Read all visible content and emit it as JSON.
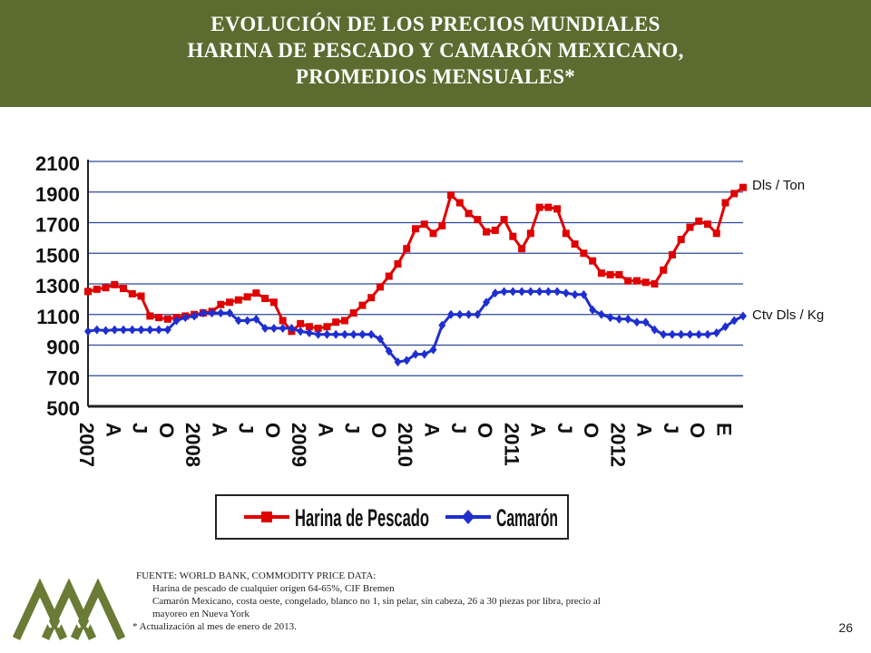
{
  "header": {
    "title_lines": [
      "EVOLUCIÓN DE LOS PRECIOS MUNDIALES",
      "HARINA DE PESCADO Y CAMARÓN MEXICANO,",
      "PROMEDIOS MENSUALES*"
    ]
  },
  "chart_data": {
    "type": "line",
    "title": "",
    "y_ticks": [
      "2100",
      "1900",
      "1700",
      "1500",
      "1300",
      "1100",
      "900",
      "700",
      "500"
    ],
    "ylim": [
      500,
      2100
    ],
    "grid": true,
    "x_tick_labels": [
      "2007",
      "A",
      "J",
      "O",
      "2008",
      "A",
      "J",
      "O",
      "2009",
      "A",
      "J",
      "O",
      "2010",
      "A",
      "J",
      "O",
      "2011",
      "A",
      "J",
      "O",
      "2012",
      "A",
      "J",
      "O",
      "E"
    ],
    "unit_labels": {
      "harina": "Dls / Ton",
      "camaron": "Ctv Dls / Kg"
    },
    "series": [
      {
        "name": "Harina de Pescado",
        "color": "#e00000",
        "marker": "square",
        "values": [
          1250,
          1265,
          1275,
          1295,
          1270,
          1235,
          1220,
          1090,
          1080,
          1070,
          1080,
          1090,
          1100,
          1110,
          1120,
          1165,
          1180,
          1195,
          1215,
          1240,
          1205,
          1180,
          1060,
          990,
          1040,
          1020,
          1010,
          1020,
          1050,
          1060,
          1110,
          1160,
          1210,
          1280,
          1350,
          1430,
          1530,
          1660,
          1690,
          1630,
          1680,
          1880,
          1830,
          1760,
          1720,
          1640,
          1650,
          1720,
          1610,
          1530,
          1630,
          1800,
          1800,
          1790,
          1630,
          1560,
          1500,
          1450,
          1370,
          1360,
          1360,
          1320,
          1320,
          1310,
          1300,
          1390,
          1490,
          1590,
          1670,
          1710,
          1690,
          1630,
          1830,
          1890,
          1930
        ]
      },
      {
        "name": "Camarón",
        "color": "#1f2fcf",
        "marker": "diamond",
        "values": [
          990,
          1000,
          995,
          1000,
          1000,
          1000,
          1000,
          1000,
          1000,
          1000,
          1060,
          1080,
          1090,
          1110,
          1110,
          1110,
          1110,
          1060,
          1060,
          1070,
          1010,
          1010,
          1010,
          1010,
          990,
          980,
          970,
          970,
          970,
          970,
          970,
          970,
          970,
          940,
          860,
          790,
          800,
          840,
          840,
          870,
          1030,
          1100,
          1100,
          1100,
          1100,
          1180,
          1240,
          1250,
          1250,
          1250,
          1250,
          1250,
          1250,
          1250,
          1240,
          1230,
          1230,
          1130,
          1100,
          1080,
          1070,
          1070,
          1050,
          1050,
          1000,
          970,
          970,
          970,
          970,
          970,
          970,
          980,
          1020,
          1060,
          1090
        ]
      }
    ]
  },
  "source": {
    "line1": "FUENTE: WORLD BANK, COMMODITY PRICE DATA:",
    "line2": "Harina de pescado  de cualquier origen 64-65%, CIF Bremen",
    "line3": "Camarón Mexicano, costa oeste, congelado,  blanco no 1, sin pelar, sin cabeza,  26 a 30 piezas por libra, precio al",
    "line4": "mayoreo  en  Nueva York",
    "note": "* Actualización  al mes de enero de 2013."
  },
  "page_number": "26",
  "logo_color": "#6b7a34"
}
